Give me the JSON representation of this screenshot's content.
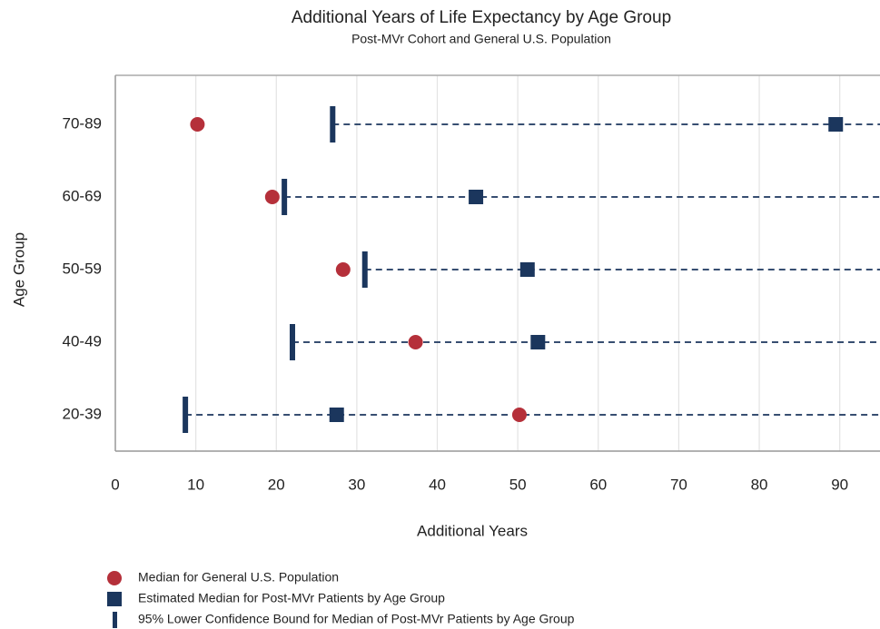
{
  "chart_data": {
    "type": "dot",
    "title": "Additional Years of Life Expectancy by Age Group",
    "subtitle": "Post-MVr Cohort and General U.S. Population",
    "x_label": "Additional Years",
    "y_label": "Age Group",
    "categories": [
      "70-89",
      "60-69",
      "50-59",
      "40-49",
      "20-39"
    ],
    "series": [
      {
        "name": "Median for General U.S. Population",
        "color": "#b5303a",
        "marker": "circle",
        "values": [
          10.2,
          19.5,
          28.3,
          37.3,
          50.2
        ]
      },
      {
        "name": "Estimated Median for Post-MVr Patients by Age Group",
        "color": "#1b365d",
        "marker": "square",
        "values": [
          89.5,
          44.8,
          51.2,
          52.5,
          27.5
        ]
      },
      {
        "name": "95% Lower Confidence Bound for Median of Post-MVr Patients by Age Group",
        "color": "#1b365d",
        "marker": "bar",
        "dashed_to_edge": true,
        "values": [
          27,
          21,
          31,
          22,
          8.7
        ]
      }
    ],
    "xlim": [
      0,
      95
    ],
    "xticks": [
      0,
      10,
      20,
      30,
      40,
      50,
      60,
      70,
      80,
      90
    ],
    "grid": true
  }
}
